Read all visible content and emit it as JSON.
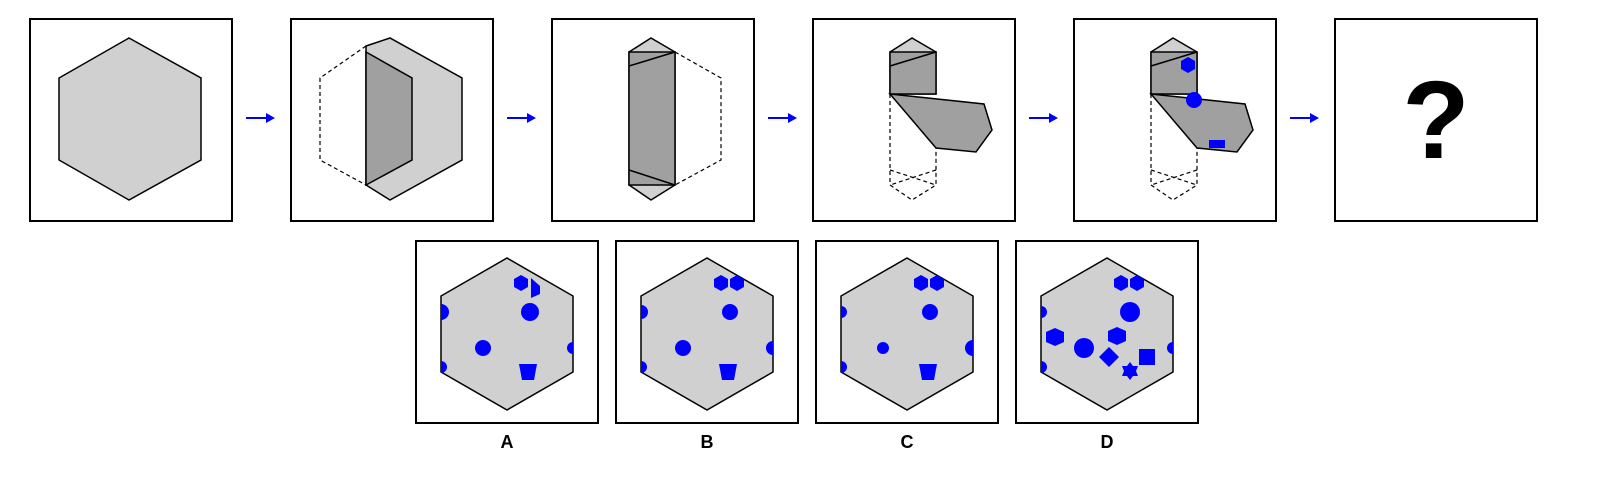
{
  "question_mark": "?",
  "options": [
    {
      "label": "A"
    },
    {
      "label": "B"
    },
    {
      "label": "C"
    },
    {
      "label": "D"
    }
  ],
  "colors": {
    "paper_fill": "#d0d0d0",
    "fold_fill": "#a0a0a0",
    "hole_fill": "#0000ff",
    "arrow": "#0000ff",
    "outline": "#000000"
  },
  "icons": [
    "arrow-right-icon"
  ]
}
